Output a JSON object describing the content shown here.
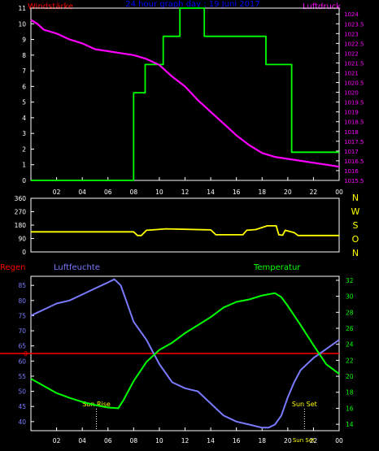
{
  "colors": {
    "background": "#000000",
    "axis": "#ffffff",
    "tick_text": "#ffffff",
    "wind_speed": "#00ff00",
    "pressure": "#ff00ff",
    "wind_dir": "#ffff00",
    "humidity": "#7a7aff",
    "temperature": "#00ff00",
    "rain": "#ff0000",
    "sun_label": "#ffff00"
  },
  "chart_data": [
    {
      "type": "line",
      "title": "24 hour graph day : 19 Juni 2017",
      "ylabel_left": "Windstärke",
      "ylabel_right": "Luftdruck",
      "x_ticks": [
        "02",
        "04",
        "06",
        "08",
        "10",
        "12",
        "14",
        "16",
        "18",
        "20",
        "22",
        "00"
      ],
      "y_left_ticks": [
        "0",
        "1",
        "2",
        "3",
        "4",
        "5",
        "6",
        "7",
        "8",
        "9",
        "10",
        "11"
      ],
      "y_right_ticks": [
        "1015.5",
        "1016",
        "1016.5",
        "1017",
        "1017.5",
        "1018",
        "1018.5",
        "1019",
        "1019.5",
        "1020",
        "1020.5",
        "1021",
        "1021.5",
        "1022",
        "1022.5",
        "1023",
        "1023.5",
        "1024"
      ],
      "ylim_left": [
        0,
        11
      ],
      "ylim_right": [
        1015.5,
        1024.3
      ],
      "xlim": [
        0,
        24
      ],
      "series": [
        {
          "name": "Windstärke",
          "axis": "left",
          "step": true,
          "x": [
            0,
            8.0,
            8.9,
            10.3,
            11.6,
            13.5,
            18.3,
            20.3,
            24
          ],
          "values": [
            0,
            5.6,
            7.4,
            9.2,
            11.1,
            9.2,
            7.4,
            1.8,
            1.8
          ]
        },
        {
          "name": "Luftdruck",
          "axis": "right",
          "x": [
            0,
            0.5,
            1.0,
            2.0,
            3.0,
            4.0,
            5.0,
            6.0,
            7.0,
            8.0,
            9.0,
            10.0,
            11.0,
            12.0,
            13.0,
            14.0,
            15.0,
            16.0,
            17.0,
            18.0,
            19.0,
            20.0,
            21.0,
            22.0,
            23.0,
            24.0
          ],
          "values": [
            1023.7,
            1023.5,
            1023.2,
            1023.0,
            1022.7,
            1022.5,
            1022.2,
            1022.1,
            1022.0,
            1021.9,
            1021.7,
            1021.4,
            1020.8,
            1020.3,
            1019.6,
            1019.0,
            1018.4,
            1017.8,
            1017.3,
            1016.9,
            1016.7,
            1016.6,
            1016.5,
            1016.4,
            1016.3,
            1016.2
          ]
        }
      ]
    },
    {
      "type": "line",
      "right_labels": [
        "N",
        "W",
        "S",
        "O",
        "N"
      ],
      "y_ticks": [
        "0",
        "90",
        "180",
        "270",
        "360"
      ],
      "ylim": [
        0,
        360
      ],
      "xlim": [
        0,
        24
      ],
      "x_ticks": [
        "02",
        "04",
        "06",
        "08",
        "10",
        "12",
        "14",
        "16",
        "18",
        "20",
        "22",
        "00"
      ],
      "series": [
        {
          "name": "Windrichtung",
          "x": [
            0,
            8.0,
            8.3,
            8.6,
            9.0,
            9.8,
            10.5,
            14.0,
            14.4,
            14.8,
            16.5,
            16.8,
            17.5,
            18.4,
            19.1,
            19.3,
            19.6,
            19.8,
            20.5,
            20.8,
            24
          ],
          "values": [
            135,
            135,
            110,
            110,
            145,
            150,
            155,
            148,
            115,
            115,
            115,
            145,
            150,
            175,
            175,
            115,
            112,
            145,
            130,
            110,
            110
          ]
        }
      ]
    },
    {
      "type": "line",
      "labels": {
        "rain": "Regen",
        "humidity": "Luftfeuchte",
        "temperature": "Temperatur",
        "rain_zero": "0"
      },
      "sunrise_label": "Sun Rise",
      "sunset_label": "Sun Set",
      "sunrise_hour": 5.1,
      "sunset_hour": 21.3,
      "y_left_ticks": [
        "40",
        "45",
        "50",
        "55",
        "60",
        "65",
        "70",
        "75",
        "80",
        "85"
      ],
      "y_right_ticks": [
        "14",
        "16",
        "18",
        "20",
        "22",
        "24",
        "26",
        "28",
        "30",
        "32"
      ],
      "ylim_left": [
        37,
        88
      ],
      "ylim_right": [
        13.2,
        32.5
      ],
      "rain_zero_percent": 62.5,
      "xlim": [
        0,
        24
      ],
      "x_ticks": [
        "02",
        "04",
        "06",
        "08",
        "10",
        "12",
        "14",
        "16",
        "18",
        "20",
        "22",
        "00"
      ],
      "series": [
        {
          "name": "Luftfeuchte",
          "axis": "left",
          "x": [
            0,
            0.5,
            1.0,
            2.0,
            3.0,
            4.0,
            5.0,
            6.0,
            6.5,
            7.0,
            7.5,
            8.0,
            9.0,
            10.0,
            11.0,
            12.0,
            13.0,
            14.0,
            15.0,
            16.0,
            17.0,
            18.0,
            18.5,
            19.0,
            19.5,
            20.0,
            20.5,
            21.0,
            22.0,
            23.0,
            24.0
          ],
          "values": [
            75,
            76,
            77,
            79,
            80,
            82,
            84,
            86,
            87,
            85,
            79,
            73,
            67,
            59,
            53,
            51,
            50,
            46,
            42,
            40,
            39,
            38,
            38,
            39,
            42,
            48,
            53,
            57,
            61,
            64,
            67
          ]
        },
        {
          "name": "Temperatur",
          "axis": "right",
          "x": [
            0,
            1.0,
            2.0,
            3.0,
            4.0,
            5.0,
            6.0,
            6.8,
            7.2,
            8.0,
            9.0,
            10.0,
            11.0,
            12.0,
            13.0,
            14.0,
            15.0,
            16.0,
            17.0,
            18.0,
            19.0,
            19.5,
            20.0,
            21.0,
            22.0,
            23.0,
            24.0
          ],
          "values": [
            19.7,
            18.8,
            17.9,
            17.3,
            16.8,
            16.4,
            16.1,
            16.0,
            17.0,
            19.4,
            21.8,
            23.3,
            24.2,
            25.4,
            26.4,
            27.4,
            28.6,
            29.3,
            29.6,
            30.1,
            30.4,
            29.9,
            28.8,
            26.4,
            23.9,
            21.5,
            20.3
          ]
        }
      ]
    }
  ]
}
